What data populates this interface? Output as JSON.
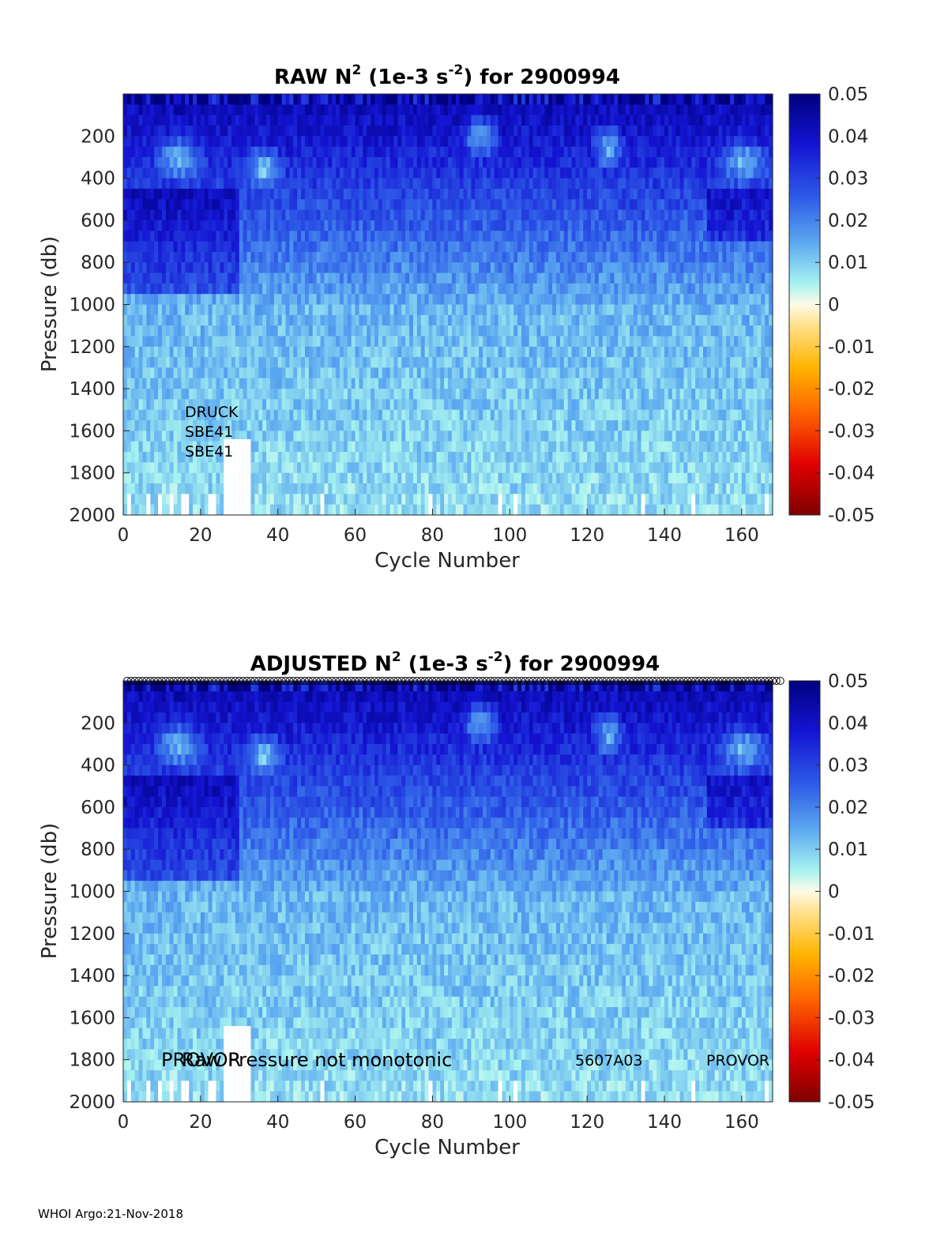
{
  "footer": "WHOI Argo:21-Nov-2018",
  "colorbar": {
    "ticks": [
      "0.05",
      "0.04",
      "0.03",
      "0.02",
      "0.01",
      "0",
      "-0.01",
      "-0.02",
      "-0.03",
      "-0.04",
      "-0.05"
    ],
    "colors": {
      "deep_blue": "#00007f",
      "blue": "#1e1ee6",
      "light_blue": "#5a9ff0",
      "cyan": "#a6f2f0",
      "white": "#fffbe8",
      "orange": "#ff9a00",
      "red": "#e00000",
      "dark_red": "#7f0000"
    }
  },
  "chart_data": [
    {
      "type": "heatmap",
      "title": {
        "prefix": "RAW N",
        "sup1": "2",
        "mid": " (1e-3 s",
        "sup2": "-2",
        "suffix": ") for 2900994"
      },
      "xlabel": "Cycle Number",
      "ylabel": "Pressure (db)",
      "xlim": [
        0,
        168
      ],
      "ylim": [
        2000,
        0
      ],
      "clim": [
        -0.05,
        0.05
      ],
      "xticks": [
        "0",
        "20",
        "40",
        "60",
        "80",
        "100",
        "120",
        "140",
        "160"
      ],
      "yticks": [
        "200",
        "400",
        "600",
        "800",
        "1000",
        "1200",
        "1400",
        "1600",
        "1800",
        "2000"
      ],
      "annotations": [
        "DRUCK",
        "SBE41",
        "SBE41"
      ],
      "profile_markers": false
    },
    {
      "type": "heatmap",
      "title": {
        "prefix": "ADJUSTED N",
        "sup1": "2",
        "mid": " (1e-3 s",
        "sup2": "-2",
        "suffix": ") for 2900994"
      },
      "xlabel": "Cycle Number",
      "ylabel": "Pressure (db)",
      "xlim": [
        0,
        168
      ],
      "ylim": [
        2000,
        0
      ],
      "clim": [
        -0.05,
        0.05
      ],
      "xticks": [
        "0",
        "20",
        "40",
        "60",
        "80",
        "100",
        "120",
        "140",
        "160"
      ],
      "yticks": [
        "200",
        "400",
        "600",
        "800",
        "1000",
        "1200",
        "1400",
        "1600",
        "1800",
        "2000"
      ],
      "annotations": [
        "PROVOR",
        "Raw Pressure not monotonic",
        "5607A03",
        "PROVOR"
      ],
      "profile_markers": true
    }
  ]
}
